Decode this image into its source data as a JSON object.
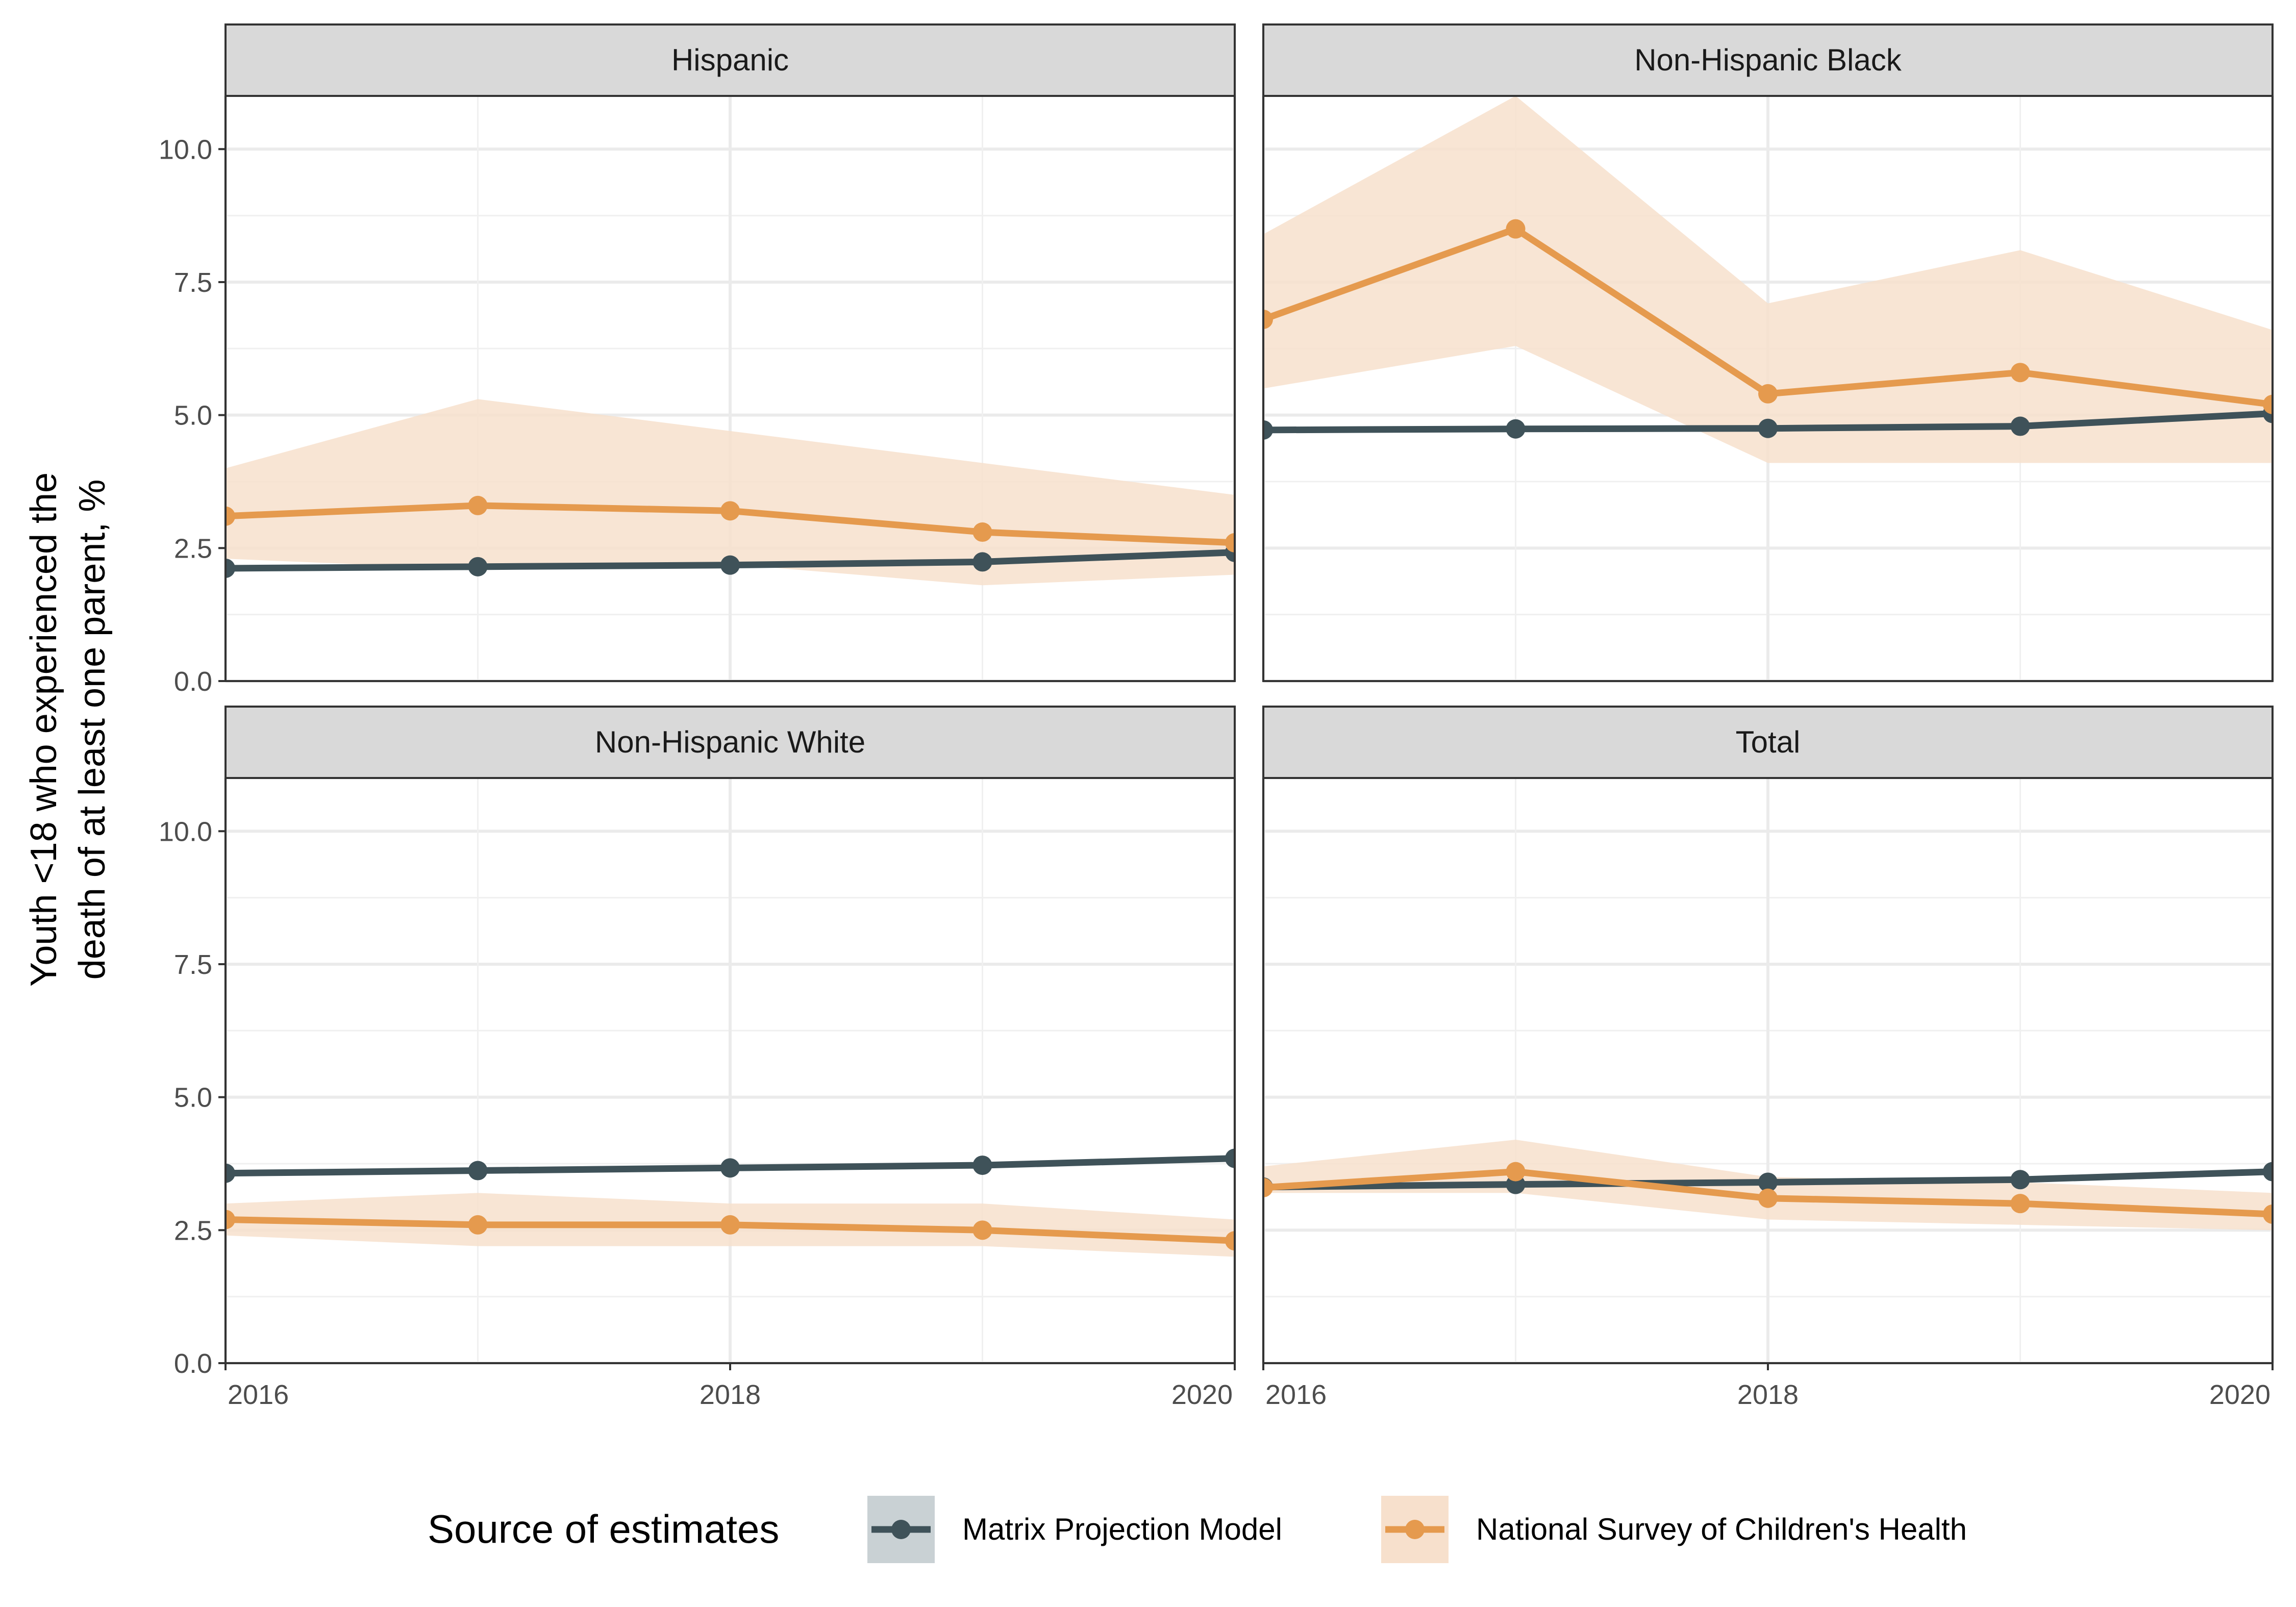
{
  "chart_data": {
    "type": "line",
    "facets": [
      "Hispanic",
      "Non-Hispanic Black",
      "Non-Hispanic White",
      "Total"
    ],
    "x": [
      2016,
      2017,
      2018,
      2019,
      2020
    ],
    "x_ticks": [
      "2016",
      "2018",
      "2020"
    ],
    "y_ticks": [
      "0.0",
      "2.5",
      "5.0",
      "7.5",
      "10.0"
    ],
    "xlim": [
      2016,
      2020
    ],
    "ylim": [
      0,
      11
    ],
    "ylabel": [
      "Youth <18 who experienced the",
      "death of at least one parent, %"
    ],
    "xlabel": "",
    "legend": {
      "title": "Source of estimates",
      "placement": "bottom"
    },
    "grid": true,
    "series": [
      {
        "name": "Matrix Projection Model",
        "color": "#3f5259",
        "band_color": "#c9d1d4",
        "values": {
          "Hispanic": [
            2.12,
            2.15,
            2.18,
            2.24,
            2.42
          ],
          "Non-Hispanic Black": [
            4.72,
            4.74,
            4.75,
            4.79,
            5.03
          ],
          "Non-Hispanic White": [
            3.57,
            3.62,
            3.67,
            3.72,
            3.85
          ],
          "Total": [
            3.31,
            3.36,
            3.4,
            3.45,
            3.6
          ]
        }
      },
      {
        "name": "National Survey of Children's Health",
        "color": "#e59a4e",
        "band_color": "#f7e0cc",
        "values": {
          "Hispanic": [
            3.1,
            3.3,
            3.2,
            2.8,
            2.6
          ],
          "Non-Hispanic Black": [
            6.8,
            8.5,
            5.4,
            5.8,
            5.2
          ],
          "Non-Hispanic White": [
            2.7,
            2.6,
            2.6,
            2.5,
            2.3
          ],
          "Total": [
            3.3,
            3.6,
            3.1,
            3.0,
            2.8
          ]
        },
        "lower": {
          "Hispanic": [
            2.3,
            2.1,
            2.2,
            1.8,
            2.0
          ],
          "Non-Hispanic Black": [
            5.5,
            6.3,
            4.1,
            4.1,
            4.1
          ],
          "Non-Hispanic White": [
            2.4,
            2.2,
            2.2,
            2.2,
            2.0
          ],
          "Total": [
            3.2,
            3.2,
            2.7,
            2.6,
            2.5
          ]
        },
        "upper": {
          "Hispanic": [
            4.0,
            5.3,
            4.7,
            4.1,
            3.5
          ],
          "Non-Hispanic Black": [
            8.4,
            11.0,
            7.1,
            8.1,
            6.6
          ],
          "Non-Hispanic White": [
            3.0,
            3.2,
            3.0,
            3.0,
            2.7
          ],
          "Total": [
            3.7,
            4.2,
            3.5,
            3.4,
            3.2
          ]
        }
      }
    ]
  }
}
